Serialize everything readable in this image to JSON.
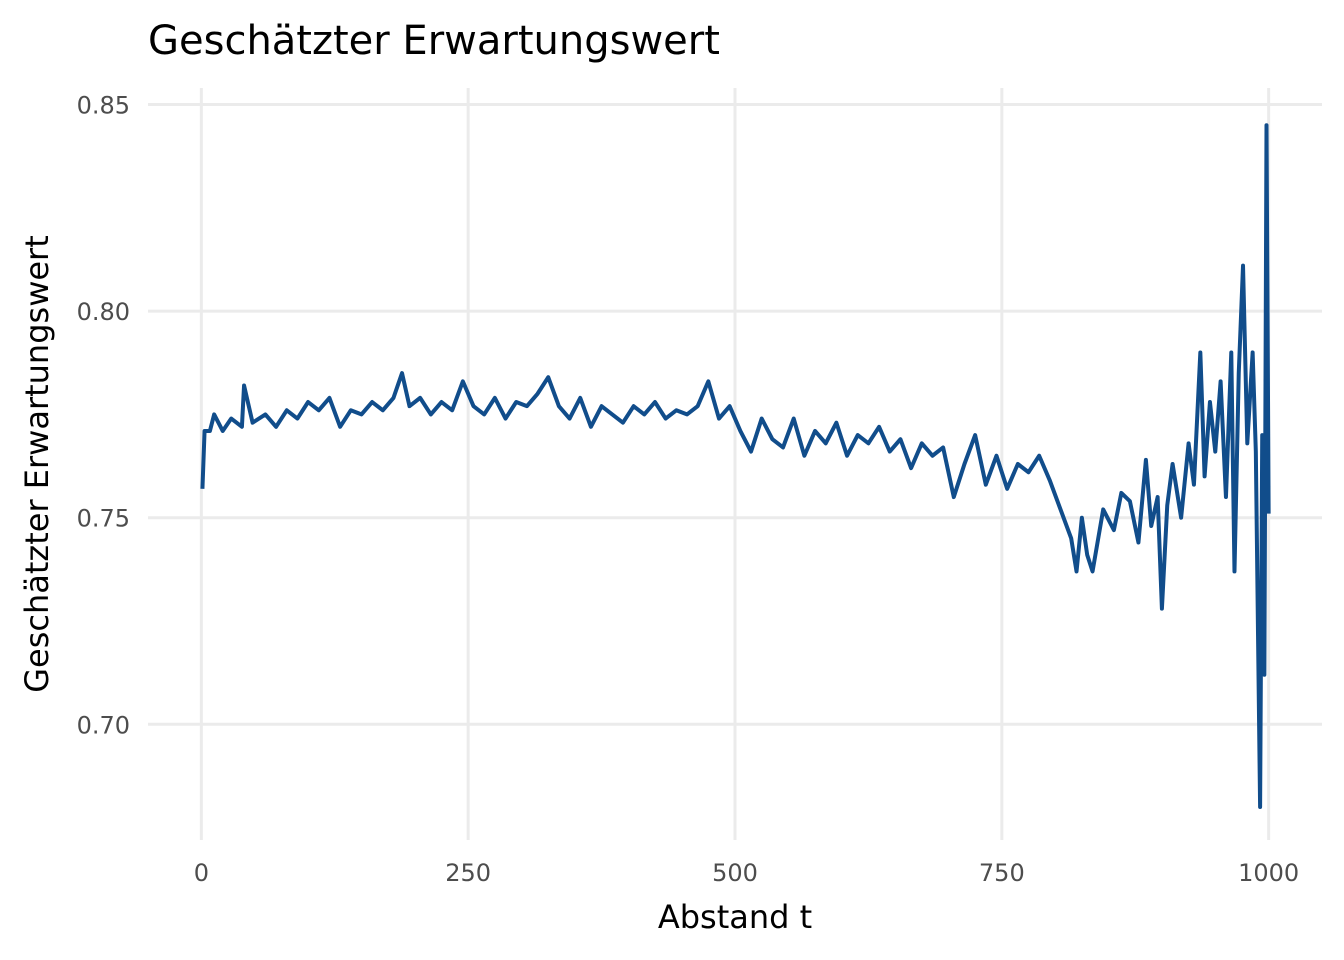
{
  "chart_data": {
    "type": "line",
    "title": "Geschätzter Erwartungswert",
    "x_label": "Abstand t",
    "y_label": "Geschätzter Erwartungswert",
    "x": [
      1,
      3,
      8,
      12,
      20,
      28,
      38,
      40,
      48,
      60,
      70,
      80,
      90,
      100,
      110,
      120,
      130,
      140,
      150,
      160,
      170,
      180,
      188,
      195,
      205,
      215,
      225,
      235,
      245,
      255,
      265,
      275,
      285,
      295,
      305,
      315,
      325,
      335,
      345,
      355,
      365,
      375,
      385,
      395,
      405,
      415,
      425,
      435,
      445,
      455,
      465,
      475,
      485,
      495,
      505,
      515,
      525,
      535,
      545,
      555,
      565,
      575,
      585,
      595,
      605,
      615,
      625,
      635,
      645,
      655,
      665,
      675,
      685,
      695,
      705,
      715,
      725,
      735,
      745,
      755,
      765,
      775,
      785,
      795,
      805,
      815,
      820,
      825,
      830,
      835,
      845,
      855,
      862,
      870,
      878,
      885,
      890,
      896,
      900,
      905,
      910,
      918,
      925,
      930,
      936,
      940,
      945,
      950,
      955,
      960,
      965,
      968,
      972,
      976,
      980,
      985,
      988,
      992,
      994,
      996,
      998,
      1000
    ],
    "series": [
      {
        "name": "Geschätzter Erwartungswert",
        "color": "#114d8b",
        "values": [
          0.757,
          0.771,
          0.771,
          0.775,
          0.771,
          0.774,
          0.772,
          0.782,
          0.773,
          0.775,
          0.772,
          0.776,
          0.774,
          0.778,
          0.776,
          0.779,
          0.772,
          0.776,
          0.775,
          0.778,
          0.776,
          0.779,
          0.785,
          0.777,
          0.779,
          0.775,
          0.778,
          0.776,
          0.783,
          0.777,
          0.775,
          0.779,
          0.774,
          0.778,
          0.777,
          0.78,
          0.784,
          0.777,
          0.774,
          0.779,
          0.772,
          0.777,
          0.775,
          0.773,
          0.777,
          0.775,
          0.778,
          0.774,
          0.776,
          0.775,
          0.777,
          0.783,
          0.774,
          0.777,
          0.771,
          0.766,
          0.774,
          0.769,
          0.767,
          0.774,
          0.765,
          0.771,
          0.768,
          0.773,
          0.765,
          0.77,
          0.768,
          0.772,
          0.766,
          0.769,
          0.762,
          0.768,
          0.765,
          0.767,
          0.755,
          0.763,
          0.77,
          0.758,
          0.765,
          0.757,
          0.763,
          0.761,
          0.765,
          0.759,
          0.752,
          0.745,
          0.737,
          0.75,
          0.741,
          0.737,
          0.752,
          0.747,
          0.756,
          0.754,
          0.744,
          0.764,
          0.748,
          0.755,
          0.728,
          0.753,
          0.763,
          0.75,
          0.768,
          0.758,
          0.79,
          0.76,
          0.778,
          0.766,
          0.783,
          0.755,
          0.79,
          0.737,
          0.785,
          0.811,
          0.768,
          0.79,
          0.766,
          0.68,
          0.77,
          0.712,
          0.845,
          0.751
        ]
      }
    ],
    "xlim": [
      -50,
      1050
    ],
    "ylim": [
      0.672,
      0.854
    ],
    "xticks": [
      0,
      250,
      500,
      750,
      1000
    ],
    "yticks": [
      {
        "value": 0.7,
        "label": "0.70"
      },
      {
        "value": 0.75,
        "label": "0.75"
      },
      {
        "value": 0.8,
        "label": "0.80"
      },
      {
        "value": 0.85,
        "label": "0.85"
      }
    ],
    "grid": true
  }
}
